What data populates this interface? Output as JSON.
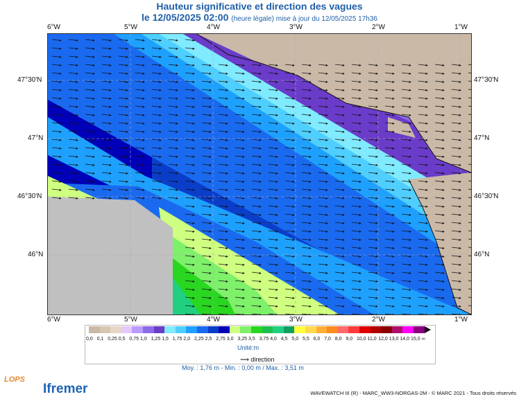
{
  "title": {
    "line1": "Hauteur significative et direction des vagues",
    "date": "le 12/05/2025 02:00",
    "note": "(heure légale) mise à jour du 12/05/2025 17h36"
  },
  "axes": {
    "lon_labels": [
      "6°W",
      "5°W",
      "4°W",
      "3°W",
      "2°W",
      "1°W"
    ],
    "lat_labels": [
      "47°30'N",
      "47°N",
      "46°30'N",
      "46°N"
    ]
  },
  "legend": {
    "ticks": [
      "0,0",
      "0,1",
      "0,25",
      "0,5",
      "0,75",
      "1,0",
      "1,25",
      "1,5",
      "1,75",
      "2,0",
      "2,25",
      "2,5",
      "2,75",
      "3,0",
      "3,25",
      "3,5",
      "3,75",
      "4,0",
      "4,5",
      "5,0",
      "5,5",
      "6,0",
      "7,0",
      "8,0",
      "9,0",
      "10,0",
      "11,0",
      "12,0",
      "13,0",
      "14,0",
      "15,0",
      "∞"
    ],
    "colors": [
      "#cbb9a7",
      "#d8c6b3",
      "#e6d7c6",
      "#e6c8ff",
      "#b99bff",
      "#8c6be8",
      "#6a3cc9",
      "#80eaff",
      "#4fcfff",
      "#1ea0ff",
      "#1a6af0",
      "#0a3ec9",
      "#0000b8",
      "#cfff80",
      "#7ef06a",
      "#29d620",
      "#1ec04d",
      "#20d080",
      "#0fa060",
      "#ffff40",
      "#ffd84d",
      "#ffae33",
      "#ff8a1f",
      "#ff6a6a",
      "#ff3a3a",
      "#e00000",
      "#b00000",
      "#8a0000",
      "#b0106a",
      "#ff00ff",
      "#8a0080"
    ],
    "unit": "Unité:m",
    "direction": "direction",
    "stats": "Moy. : 1,76 m   -   Min. : 0,00 m / Max. : 3,51 m"
  },
  "footer": "WAVEWATCH III (R) - MARC_WW3-NORGAS-2M - © MARC 2021 - Tous droits réservés",
  "logos": {
    "lops": "LOPS",
    "ifremer": "Ifremer"
  }
}
